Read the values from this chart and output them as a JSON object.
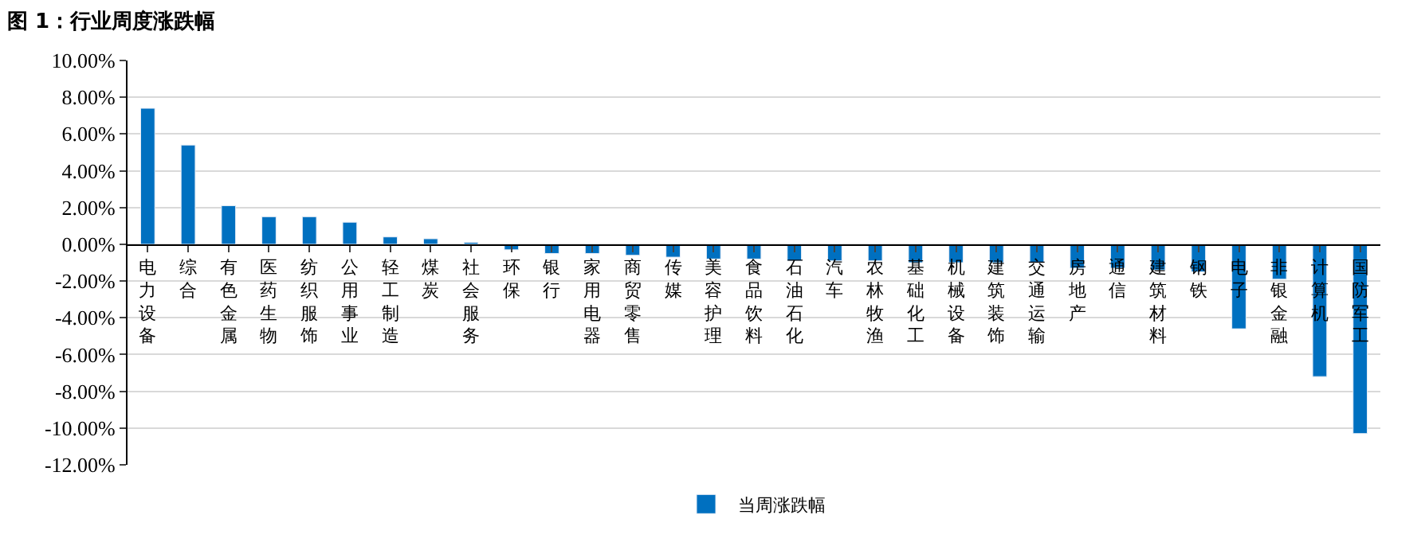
{
  "chart_data": {
    "type": "bar",
    "title": "图 1：行业周度涨跌幅",
    "categories": [
      "电力设备",
      "综合",
      "有色金属",
      "医药生物",
      "纺织服饰",
      "公用事业",
      "轻工制造",
      "煤炭",
      "社会服务",
      "环保",
      "银行",
      "家用电器",
      "商贸零售",
      "传媒",
      "美容护理",
      "食品饮料",
      "石油石化",
      "汽车",
      "农林牧渔",
      "基础化工",
      "机械设备",
      "建筑装饰",
      "交通运输",
      "房地产",
      "通信",
      "建筑材料",
      "钢铁",
      "电子",
      "非银金融",
      "计算机",
      "国防军工"
    ],
    "series": [
      {
        "name": "当周涨跌幅",
        "color": "#0070c0",
        "values": [
          7.4,
          5.4,
          2.1,
          1.5,
          1.5,
          1.2,
          0.4,
          0.3,
          0.1,
          -0.3,
          -0.5,
          -0.5,
          -0.6,
          -0.7,
          -0.8,
          -0.8,
          -0.9,
          -0.9,
          -0.9,
          -1.0,
          -1.0,
          -1.0,
          -1.0,
          -1.3,
          -1.3,
          -1.4,
          -1.5,
          -4.6,
          -1.9,
          -7.2,
          -10.3
        ]
      }
    ],
    "ylim": [
      -12,
      10
    ],
    "yticks": [
      {
        "value": 10,
        "label": "10.00%"
      },
      {
        "value": 8,
        "label": "8.00%"
      },
      {
        "value": 6,
        "label": "6.00%"
      },
      {
        "value": 4,
        "label": "4.00%"
      },
      {
        "value": 2,
        "label": "2.00%"
      },
      {
        "value": 0,
        "label": "0.00%"
      },
      {
        "value": -2,
        "label": "-2.00%"
      },
      {
        "value": -4,
        "label": "-4.00%"
      },
      {
        "value": -6,
        "label": "-6.00%"
      },
      {
        "value": -8,
        "label": "-8.00%"
      },
      {
        "value": -10,
        "label": "-10.00%"
      },
      {
        "value": -12,
        "label": "-12.00%"
      }
    ],
    "grid": "y",
    "legend": "bottom"
  }
}
